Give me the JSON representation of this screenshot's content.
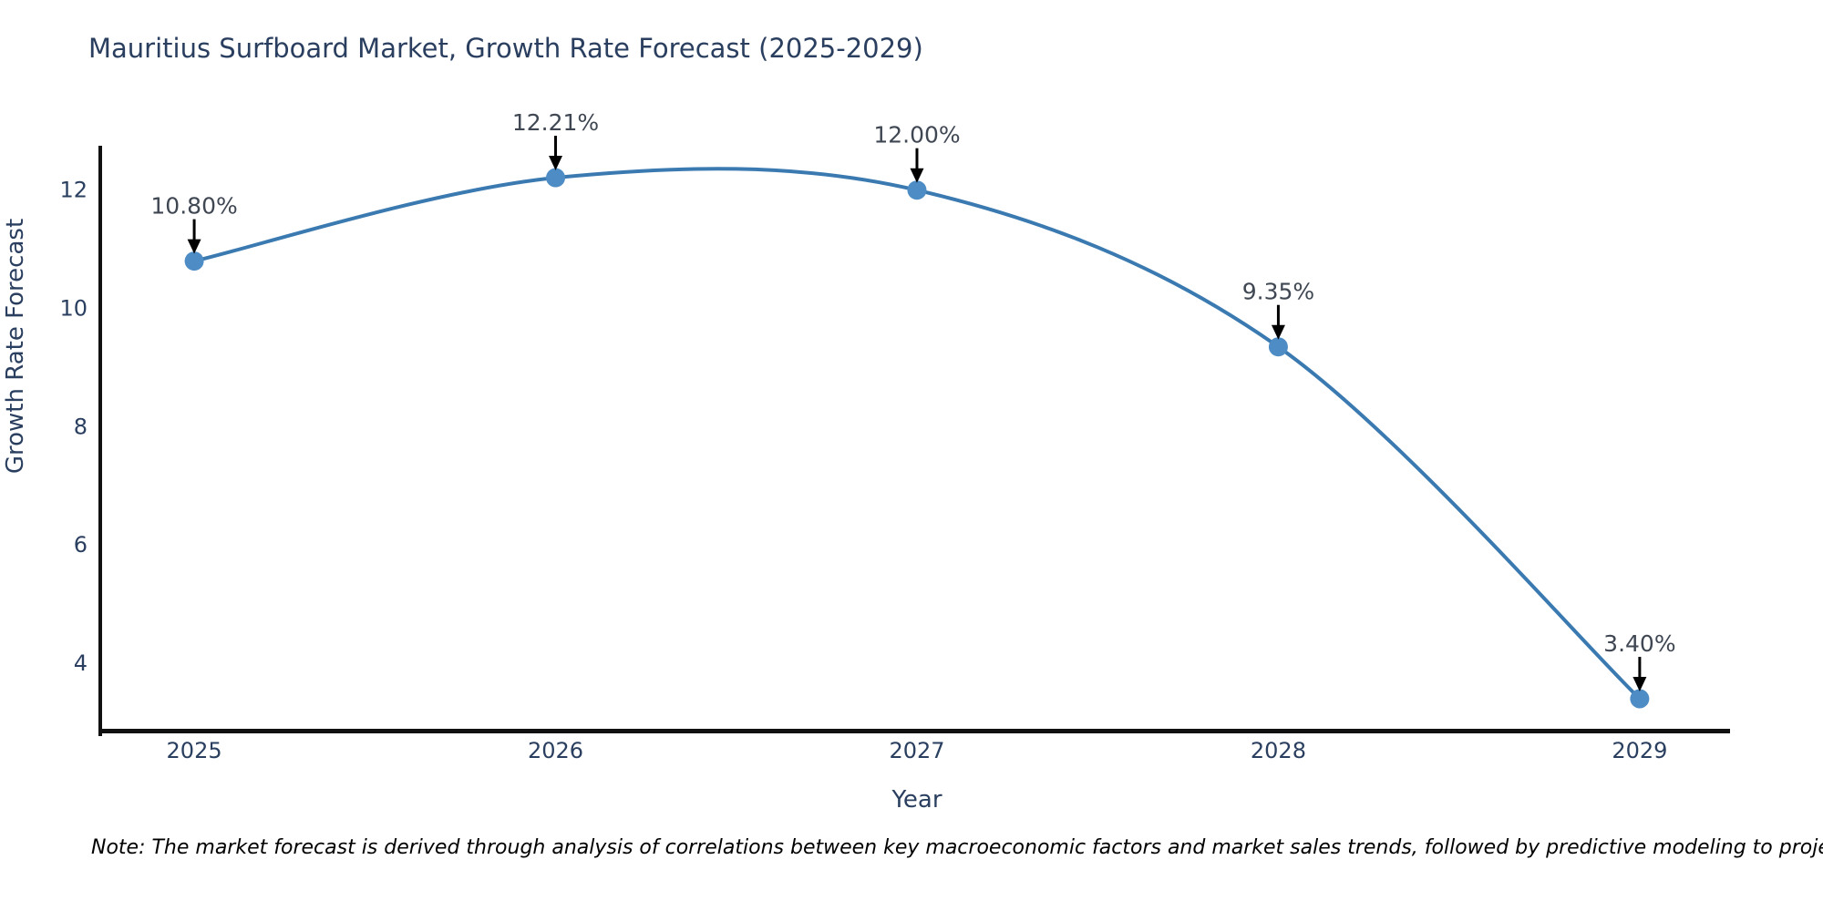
{
  "title": "Mauritius Surfboard Market, Growth Rate Forecast (2025-2029)",
  "note": "Note: The market forecast is derived through analysis of correlations between key macroeconomic factors and market sales trends, followed by predictive modeling to project future sales.",
  "chart_data": {
    "type": "line",
    "title": "Mauritius Surfboard Market, Growth Rate Forecast (2025-2029)",
    "xlabel": "Year",
    "ylabel": "Growth Rate Forecast",
    "x": [
      2025,
      2026,
      2027,
      2028,
      2029
    ],
    "series": [
      {
        "name": "Growth Rate Forecast",
        "values": [
          10.8,
          12.21,
          12.0,
          9.35,
          3.4
        ]
      }
    ],
    "point_labels": [
      "10.80%",
      "12.21%",
      "12.00%",
      "9.35%",
      "3.40%"
    ],
    "xticks": [
      "2025",
      "2026",
      "2027",
      "2028",
      "2029"
    ],
    "yticks": [
      4,
      6,
      8,
      10,
      12
    ],
    "xlim": [
      2024.74,
      2029.25
    ],
    "ylim": [
      2.83,
      12.75
    ],
    "line_shape": "spline",
    "marker": "circle",
    "grid": false,
    "legend": "none",
    "colors": {
      "line": "#3a7ab1",
      "marker": "#4e8cc5",
      "annotation_arrow": "#000000",
      "axis_line": "#111111",
      "text": "#2a3f5f",
      "annotation_text": "#3f4753",
      "note_text": "#000000"
    }
  }
}
